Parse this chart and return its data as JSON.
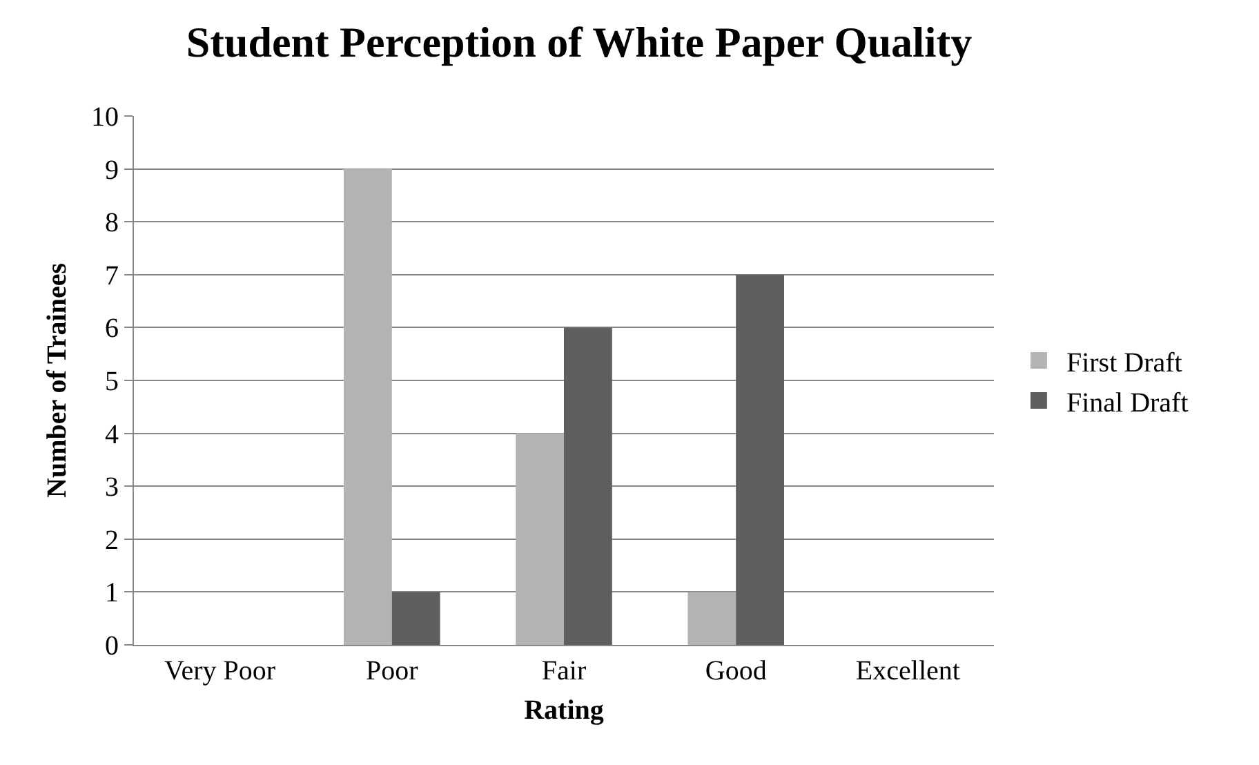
{
  "chart_data": {
    "type": "bar",
    "title": "Student Perception of White Paper Quality",
    "xlabel": "Rating",
    "ylabel": "Number of Trainees",
    "categories": [
      "Very Poor",
      "Poor",
      "Fair",
      "Good",
      "Excellent"
    ],
    "series": [
      {
        "name": "First Draft",
        "color": "#b3b3b3",
        "values": [
          0,
          9,
          4,
          1,
          0
        ]
      },
      {
        "name": "Final Draft",
        "color": "#5f5f5f",
        "values": [
          0,
          1,
          6,
          7,
          0
        ]
      }
    ],
    "ylim": [
      0,
      10
    ],
    "yticks": [
      0,
      1,
      2,
      3,
      4,
      5,
      6,
      7,
      8,
      9,
      10
    ],
    "grid": "y",
    "legend": "right"
  }
}
